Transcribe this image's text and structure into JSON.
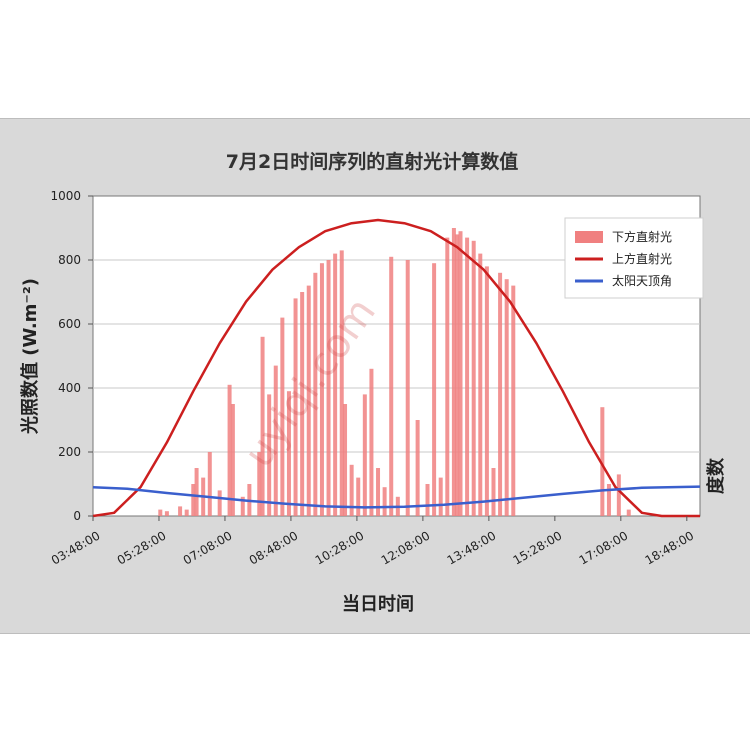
{
  "chart_data": {
    "type": "bar+line",
    "title": "7月2日时间序列的直射光计算数值",
    "xlabel": "当日时间",
    "ylabel": "光照数值 (W.m⁻²)",
    "y2label": "度数",
    "ylim": [
      0,
      1000
    ],
    "yticks": [
      "0",
      "200",
      "400",
      "600",
      "800",
      "1000"
    ],
    "xlim_minutes": [
      228,
      1148
    ],
    "xticks": [
      "03:48:00",
      "05:28:00",
      "07:08:00",
      "08:48:00",
      "10:28:00",
      "12:08:00",
      "13:48:00",
      "15:28:00",
      "17:08:00",
      "18:48:00"
    ],
    "grid": true,
    "legend_position": "top-right",
    "series": [
      {
        "name": "下方直射光",
        "type": "bar",
        "color": "#f08080",
        "points": [
          [
            "05:30",
            20
          ],
          [
            "05:40",
            15
          ],
          [
            "06:00",
            30
          ],
          [
            "06:10",
            20
          ],
          [
            "06:20",
            100
          ],
          [
            "06:25",
            150
          ],
          [
            "06:35",
            120
          ],
          [
            "06:45",
            200
          ],
          [
            "07:00",
            80
          ],
          [
            "07:15",
            410
          ],
          [
            "07:20",
            350
          ],
          [
            "07:35",
            60
          ],
          [
            "07:45",
            100
          ],
          [
            "08:00",
            200
          ],
          [
            "08:05",
            560
          ],
          [
            "08:15",
            380
          ],
          [
            "08:25",
            470
          ],
          [
            "08:35",
            620
          ],
          [
            "08:45",
            390
          ],
          [
            "08:55",
            680
          ],
          [
            "09:05",
            700
          ],
          [
            "09:15",
            720
          ],
          [
            "09:25",
            760
          ],
          [
            "09:35",
            790
          ],
          [
            "09:45",
            800
          ],
          [
            "09:55",
            820
          ],
          [
            "10:05",
            830
          ],
          [
            "10:10",
            350
          ],
          [
            "10:20",
            160
          ],
          [
            "10:30",
            120
          ],
          [
            "10:40",
            380
          ],
          [
            "10:50",
            460
          ],
          [
            "11:00",
            150
          ],
          [
            "11:10",
            90
          ],
          [
            "11:20",
            810
          ],
          [
            "11:30",
            60
          ],
          [
            "11:45",
            800
          ],
          [
            "12:00",
            300
          ],
          [
            "12:15",
            100
          ],
          [
            "12:25",
            790
          ],
          [
            "12:35",
            120
          ],
          [
            "12:45",
            870
          ],
          [
            "12:55",
            900
          ],
          [
            "13:00",
            880
          ],
          [
            "13:05",
            890
          ],
          [
            "13:15",
            870
          ],
          [
            "13:25",
            860
          ],
          [
            "13:35",
            820
          ],
          [
            "13:45",
            780
          ],
          [
            "13:55",
            150
          ],
          [
            "14:05",
            760
          ],
          [
            "14:15",
            740
          ],
          [
            "14:25",
            720
          ],
          [
            "16:40",
            340
          ],
          [
            "16:50",
            100
          ],
          [
            "17:05",
            130
          ],
          [
            "17:20",
            20
          ]
        ]
      },
      {
        "name": "上方直射光",
        "type": "line",
        "color": "#cc1f1f",
        "points": [
          [
            "03:48",
            0
          ],
          [
            "04:20",
            10
          ],
          [
            "05:00",
            90
          ],
          [
            "05:40",
            230
          ],
          [
            "06:20",
            390
          ],
          [
            "07:00",
            540
          ],
          [
            "07:40",
            670
          ],
          [
            "08:20",
            770
          ],
          [
            "09:00",
            840
          ],
          [
            "09:40",
            890
          ],
          [
            "10:20",
            915
          ],
          [
            "11:00",
            925
          ],
          [
            "11:40",
            915
          ],
          [
            "12:20",
            890
          ],
          [
            "13:00",
            840
          ],
          [
            "13:40",
            770
          ],
          [
            "14:20",
            670
          ],
          [
            "15:00",
            540
          ],
          [
            "15:40",
            390
          ],
          [
            "16:20",
            230
          ],
          [
            "17:00",
            90
          ],
          [
            "17:40",
            10
          ],
          [
            "18:10",
            0
          ],
          [
            "19:08",
            0
          ]
        ]
      },
      {
        "name": "太阳天顶角",
        "type": "line",
        "color": "#3a5fcd",
        "points": [
          [
            "03:48",
            90
          ],
          [
            "04:40",
            85
          ],
          [
            "05:40",
            72
          ],
          [
            "06:40",
            60
          ],
          [
            "07:40",
            48
          ],
          [
            "08:40",
            38
          ],
          [
            "09:40",
            30
          ],
          [
            "10:40",
            27
          ],
          [
            "11:40",
            29
          ],
          [
            "12:40",
            35
          ],
          [
            "13:40",
            45
          ],
          [
            "14:40",
            57
          ],
          [
            "15:40",
            69
          ],
          [
            "16:40",
            80
          ],
          [
            "17:40",
            88
          ],
          [
            "19:08",
            92
          ]
        ]
      }
    ]
  },
  "watermark": "uyiqi.com"
}
